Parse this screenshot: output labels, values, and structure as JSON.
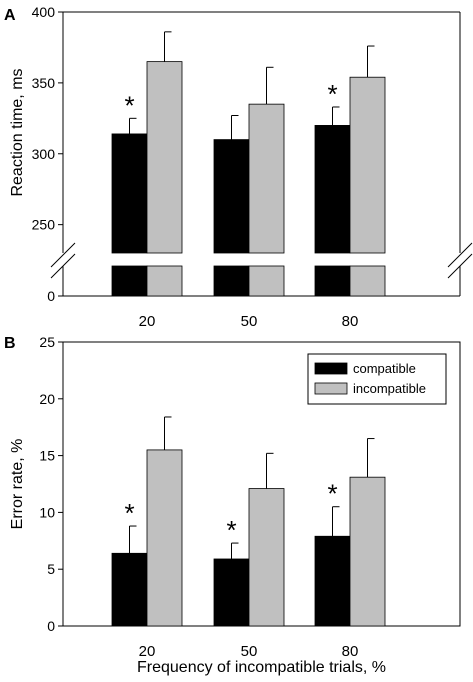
{
  "colors": {
    "compatible": "#000000",
    "incompatible": "#c0c0c0",
    "axis": "#000000"
  },
  "chart_data": [
    {
      "type": "bar",
      "panel_label": "A",
      "categories": [
        "20",
        "50",
        "80"
      ],
      "ylabel": "Reaction time, ms",
      "xlabel": "",
      "ylim": [
        0,
        400
      ],
      "axis_break": {
        "from": 0,
        "to": 230
      },
      "yticks": [
        0,
        250,
        300,
        350,
        400
      ],
      "series": [
        {
          "name": "compatible",
          "values": [
            314,
            310,
            320
          ],
          "errors": [
            11,
            17,
            13
          ]
        },
        {
          "name": "incompatible",
          "values": [
            365,
            335,
            354
          ],
          "errors": [
            21,
            26,
            22
          ]
        }
      ],
      "annotations": [
        {
          "category": "20",
          "text": "*"
        },
        {
          "category": "80",
          "text": "*"
        }
      ]
    },
    {
      "type": "bar",
      "panel_label": "B",
      "categories": [
        "20",
        "50",
        "80"
      ],
      "ylabel": "Error rate, %",
      "xlabel": "Frequency of incompatible trials, %",
      "ylim": [
        0,
        25
      ],
      "yticks": [
        0,
        5,
        10,
        15,
        20,
        25
      ],
      "legend_position": "top-right",
      "series": [
        {
          "name": "compatible",
          "values": [
            6.4,
            5.9,
            7.9
          ],
          "errors": [
            2.4,
            1.4,
            2.6
          ]
        },
        {
          "name": "incompatible",
          "values": [
            15.5,
            12.1,
            13.1
          ],
          "errors": [
            2.9,
            3.1,
            3.4
          ]
        }
      ],
      "annotations": [
        {
          "category": "20",
          "text": "*"
        },
        {
          "category": "50",
          "text": "*"
        },
        {
          "category": "80",
          "text": "*"
        }
      ]
    }
  ]
}
